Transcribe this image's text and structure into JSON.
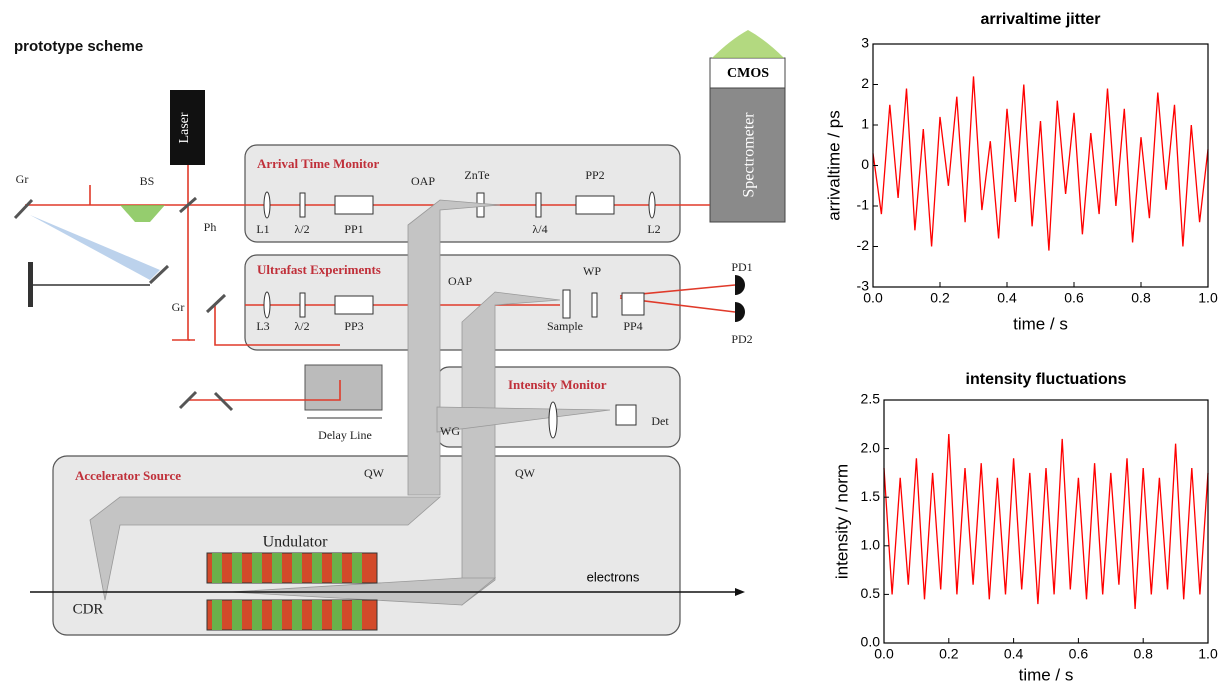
{
  "header": {
    "title": "prototype scheme"
  },
  "diagram": {
    "labels": [
      "Laser",
      "Gr",
      "BS",
      "Ph",
      "L1",
      "λ/2",
      "PP1",
      "OAP",
      "ZnTe",
      "λ/4",
      "PP2",
      "L2",
      "CMOS",
      "Spectrometer",
      "Arrival Time Monitor",
      "Ultrafast Experiments",
      "L3",
      "λ/2",
      "PP3",
      "OAP",
      "WP",
      "Sample",
      "PP4",
      "PD1",
      "PD2",
      "Gr",
      "Delay Line",
      "Intensity Monitor",
      "WG",
      "Det",
      "Accelerator Source",
      "QW",
      "QW",
      "Undulator",
      "CDR",
      "electrons"
    ]
  },
  "chart_data": [
    {
      "type": "line",
      "title": "arrivaltime jitter",
      "x_label": "time / s",
      "y_label": "arrivaltime / ps",
      "color": "#ff0000",
      "x": [
        0,
        0.025,
        0.05,
        0.075,
        0.1,
        0.125,
        0.15,
        0.175,
        0.2,
        0.225,
        0.25,
        0.275,
        0.3,
        0.325,
        0.35,
        0.375,
        0.4,
        0.425,
        0.45,
        0.475,
        0.5,
        0.525,
        0.55,
        0.575,
        0.6,
        0.625,
        0.65,
        0.675,
        0.7,
        0.725,
        0.75,
        0.775,
        0.8,
        0.825,
        0.85,
        0.875,
        0.9,
        0.925,
        0.95,
        0.975,
        1
      ],
      "values": [
        0.3,
        -1.2,
        1.5,
        -0.8,
        1.9,
        -1.6,
        0.9,
        -2.0,
        1.2,
        -0.5,
        1.7,
        -1.4,
        2.2,
        -1.1,
        0.6,
        -1.8,
        1.4,
        -0.9,
        2.0,
        -1.5,
        1.1,
        -2.1,
        1.6,
        -0.7,
        1.3,
        -1.7,
        0.8,
        -1.2,
        1.9,
        -1.0,
        1.4,
        -1.9,
        0.7,
        -1.3,
        1.8,
        -0.6,
        1.5,
        -2.0,
        1.0,
        -1.4,
        0.4
      ],
      "xlim": [
        0,
        1
      ],
      "xticks": [
        {
          "value": 0,
          "label": "0.0"
        },
        0.2,
        0.4,
        0.6,
        0.8,
        {
          "value": 1,
          "label": "1.0"
        }
      ],
      "ylim": [
        -3,
        3
      ],
      "yticks": [
        -3,
        -2,
        -1,
        0,
        1,
        2,
        3
      ]
    },
    {
      "type": "line",
      "title": "intensity fluctuations",
      "x_label": "time / s",
      "y_label": "intensity / norm",
      "color": "#ff0000",
      "x": [
        0,
        0.025,
        0.05,
        0.075,
        0.1,
        0.125,
        0.15,
        0.175,
        0.2,
        0.225,
        0.25,
        0.275,
        0.3,
        0.325,
        0.35,
        0.375,
        0.4,
        0.425,
        0.45,
        0.475,
        0.5,
        0.525,
        0.55,
        0.575,
        0.6,
        0.625,
        0.65,
        0.675,
        0.7,
        0.725,
        0.75,
        0.775,
        0.8,
        0.825,
        0.85,
        0.875,
        0.9,
        0.925,
        0.95,
        0.975,
        1
      ],
      "values": [
        1.8,
        0.5,
        1.7,
        0.6,
        1.9,
        0.45,
        1.75,
        0.55,
        2.15,
        0.5,
        1.8,
        0.6,
        1.85,
        0.45,
        1.7,
        0.5,
        1.9,
        0.55,
        1.75,
        0.4,
        1.8,
        0.5,
        2.1,
        0.55,
        1.7,
        0.45,
        1.85,
        0.5,
        1.75,
        0.6,
        1.9,
        0.35,
        1.8,
        0.5,
        1.7,
        0.55,
        2.05,
        0.45,
        1.8,
        0.5,
        1.75
      ],
      "xlim": [
        0,
        1
      ],
      "xticks": [
        {
          "value": 0,
          "label": "0.0"
        },
        0.2,
        0.4,
        0.6,
        0.8,
        {
          "value": 1,
          "label": "1.0"
        }
      ],
      "ylim": [
        0,
        2.5
      ],
      "yticks": [
        {
          "value": 0,
          "label": "0.0"
        },
        0.5,
        {
          "value": 1,
          "label": "1.0"
        },
        1.5,
        {
          "value": 2,
          "label": "2.0"
        },
        2.5
      ]
    }
  ]
}
